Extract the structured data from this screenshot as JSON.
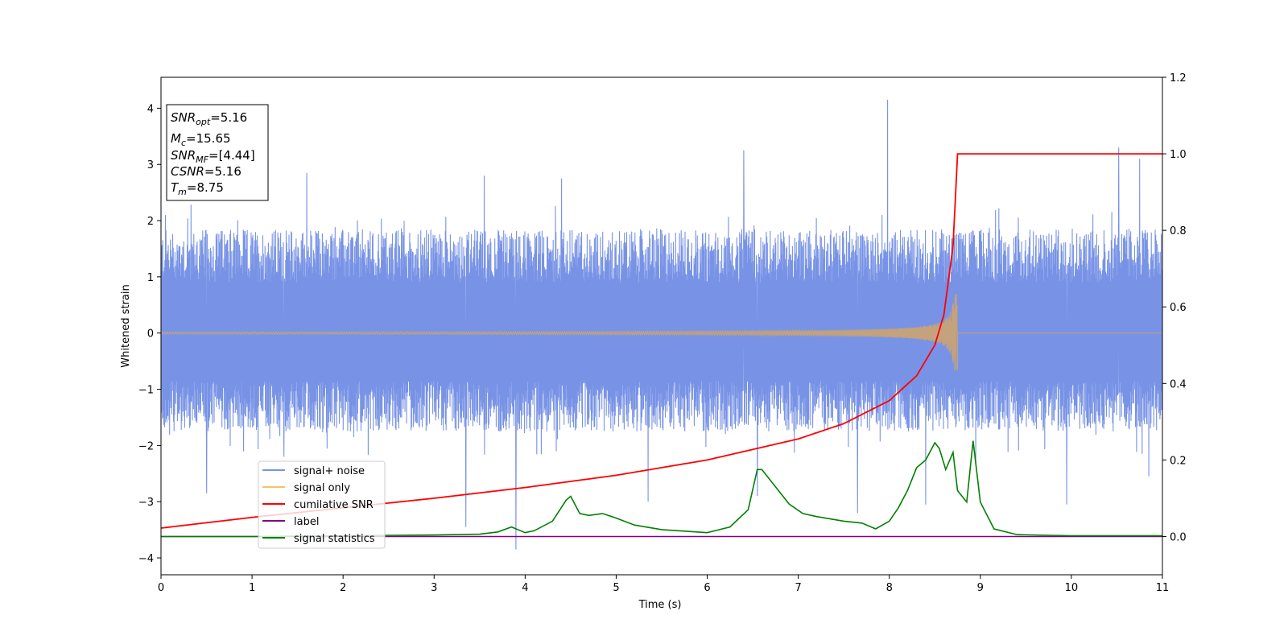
{
  "chart_data": {
    "type": "line",
    "xlabel": "Time (s)",
    "ylabel": "Whitened strain",
    "xlim": [
      0,
      11
    ],
    "ylim_left": [
      -4.3,
      4.55
    ],
    "ylim_right": [
      -0.1,
      1.2
    ],
    "x_ticks": [
      0,
      1,
      2,
      3,
      4,
      5,
      6,
      7,
      8,
      9,
      10,
      11
    ],
    "y_ticks_left": [
      -4,
      -3,
      -2,
      -1,
      0,
      1,
      2,
      3,
      4
    ],
    "y_ticks_right": [
      0.0,
      0.2,
      0.4,
      0.6,
      0.8,
      1.0,
      1.2
    ],
    "grid": false,
    "legend_placement": "lower-left",
    "info_box": {
      "snr_opt": {
        "base": "SNR",
        "sub": "opt",
        "value": "=5.16"
      },
      "mc": {
        "base": "M",
        "sub": "c",
        "value": "=15.65"
      },
      "snr_mf": {
        "base": "SNR",
        "sub": "MF",
        "value": "=[4.44]"
      },
      "csnr": {
        "base": "CSNR",
        "value": "=5.16"
      },
      "tm": {
        "base": "T",
        "sub": "m",
        "value": "=8.75"
      }
    },
    "series": [
      {
        "name": "signal+ noise",
        "axis": "left",
        "color": "#7893e6",
        "description": "noise band roughly between -1.7 and +1.8 with spikes",
        "spikes": [
          {
            "x": 0.05,
            "y": 2.1
          },
          {
            "x": 0.5,
            "y": -2.85
          },
          {
            "x": 1.35,
            "y": -2.2
          },
          {
            "x": 1.6,
            "y": 2.85
          },
          {
            "x": 3.35,
            "y": -3.45
          },
          {
            "x": 3.55,
            "y": 2.8
          },
          {
            "x": 3.9,
            "y": -3.85
          },
          {
            "x": 4.4,
            "y": 2.75
          },
          {
            "x": 5.35,
            "y": -3.0
          },
          {
            "x": 6.4,
            "y": 3.25
          },
          {
            "x": 6.55,
            "y": -2.9
          },
          {
            "x": 7.65,
            "y": -3.2
          },
          {
            "x": 7.98,
            "y": 4.15
          },
          {
            "x": 8.4,
            "y": -3.05
          },
          {
            "x": 8.95,
            "y": -2.35
          },
          {
            "x": 9.95,
            "y": -3.05
          },
          {
            "x": 10.52,
            "y": 3.3
          },
          {
            "x": 10.75,
            "y": 3.1
          },
          {
            "x": 10.85,
            "y": -2.55
          }
        ]
      },
      {
        "name": "signal only",
        "axis": "left",
        "color": "#f5c26b",
        "merger_time": 8.75,
        "peak_amplitude": 0.7
      },
      {
        "name": "cumilative SNR",
        "axis": "right",
        "color": "#ff0000",
        "points": [
          [
            0,
            0.022
          ],
          [
            1,
            0.05
          ],
          [
            2,
            0.075
          ],
          [
            3,
            0.1
          ],
          [
            4,
            0.128
          ],
          [
            5,
            0.16
          ],
          [
            6,
            0.2
          ],
          [
            7,
            0.255
          ],
          [
            7.5,
            0.295
          ],
          [
            8,
            0.355
          ],
          [
            8.3,
            0.42
          ],
          [
            8.5,
            0.5
          ],
          [
            8.6,
            0.58
          ],
          [
            8.7,
            0.76
          ],
          [
            8.75,
            1.0
          ],
          [
            11,
            1.0
          ]
        ]
      },
      {
        "name": "label",
        "axis": "right",
        "color": "#800080",
        "points": [
          [
            0,
            0.0
          ],
          [
            11,
            0.0
          ]
        ]
      },
      {
        "name": "signal statistics",
        "axis": "right",
        "color": "#008000",
        "points": [
          [
            0,
            0.0
          ],
          [
            1,
            0.0
          ],
          [
            2,
            0.002
          ],
          [
            2.5,
            0.003
          ],
          [
            3.0,
            0.004
          ],
          [
            3.5,
            0.006
          ],
          [
            3.7,
            0.012
          ],
          [
            3.85,
            0.025
          ],
          [
            4.0,
            0.01
          ],
          [
            4.1,
            0.015
          ],
          [
            4.3,
            0.04
          ],
          [
            4.45,
            0.095
          ],
          [
            4.5,
            0.105
          ],
          [
            4.6,
            0.06
          ],
          [
            4.7,
            0.055
          ],
          [
            4.85,
            0.06
          ],
          [
            5.0,
            0.048
          ],
          [
            5.2,
            0.03
          ],
          [
            5.5,
            0.018
          ],
          [
            6.0,
            0.01
          ],
          [
            6.25,
            0.025
          ],
          [
            6.45,
            0.07
          ],
          [
            6.55,
            0.175
          ],
          [
            6.6,
            0.175
          ],
          [
            6.75,
            0.13
          ],
          [
            6.9,
            0.085
          ],
          [
            7.05,
            0.06
          ],
          [
            7.2,
            0.052
          ],
          [
            7.5,
            0.04
          ],
          [
            7.7,
            0.035
          ],
          [
            7.85,
            0.02
          ],
          [
            8.0,
            0.04
          ],
          [
            8.1,
            0.075
          ],
          [
            8.2,
            0.12
          ],
          [
            8.3,
            0.18
          ],
          [
            8.4,
            0.2
          ],
          [
            8.5,
            0.245
          ],
          [
            8.55,
            0.23
          ],
          [
            8.62,
            0.175
          ],
          [
            8.7,
            0.22
          ],
          [
            8.75,
            0.12
          ],
          [
            8.85,
            0.09
          ],
          [
            8.92,
            0.25
          ],
          [
            9.0,
            0.09
          ],
          [
            9.15,
            0.02
          ],
          [
            9.4,
            0.005
          ],
          [
            10.0,
            0.002
          ],
          [
            11,
            0.002
          ]
        ]
      }
    ]
  }
}
